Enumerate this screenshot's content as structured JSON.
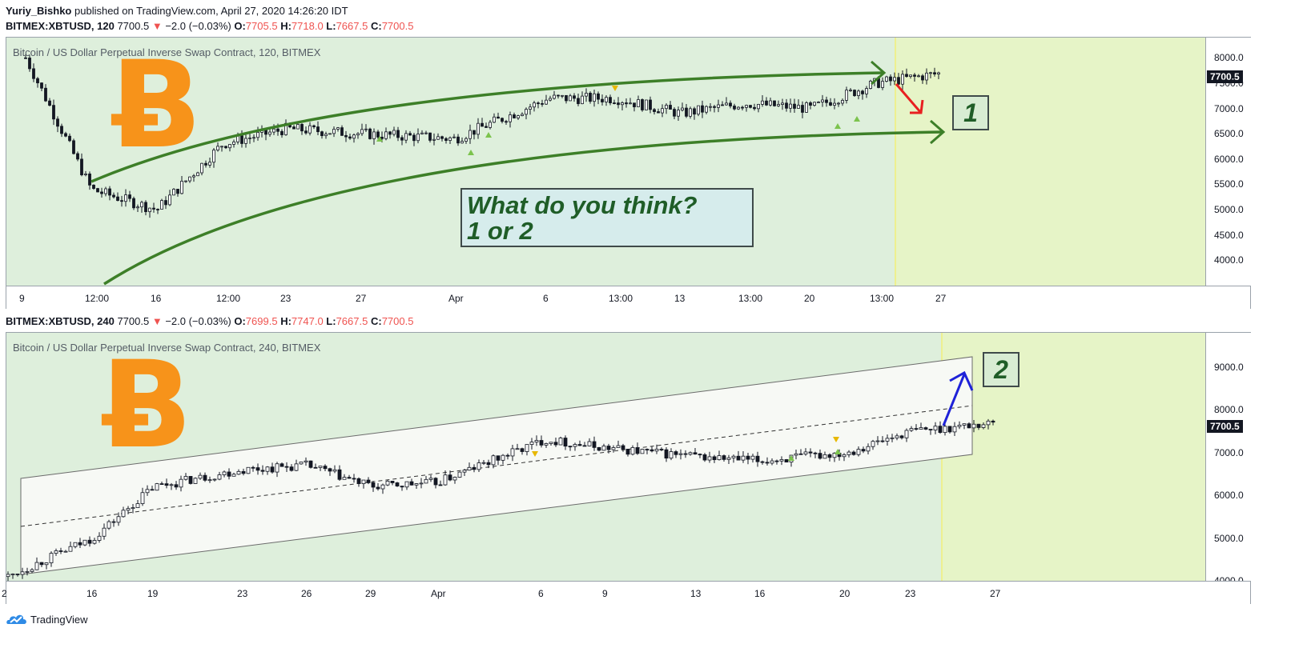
{
  "header": {
    "author": "Yuriy_Bishko",
    "published_text": "published on TradingView.com, April 27, 2020 14:26:20 IDT"
  },
  "chart1": {
    "symbol_line": "BITMEX:XBTUSD, 120",
    "price": "7700.5",
    "change": "−2.0 (−0.03%)",
    "O": "7705.5",
    "H": "7718.0",
    "L": "7667.5",
    "C": "7700.5",
    "description": "Bitcoin / US Dollar Perpetual Inverse Swap Contract, 120, BITMEX",
    "btc_symbol": "Ƀ",
    "price_tag": "7700.5",
    "label": "1",
    "question_line1": "What do you think?",
    "question_line2": "1 or 2"
  },
  "chart2": {
    "symbol_line": "BITMEX:XBTUSD, 240",
    "price": "7700.5",
    "change": "−2.0 (−0.03%)",
    "O": "7699.5",
    "H": "7747.0",
    "L": "7667.5",
    "C": "7700.5",
    "description": "Bitcoin / US Dollar Perpetual Inverse Swap Contract, 240, BITMEX",
    "btc_symbol": "Ƀ",
    "price_tag": "7700.5",
    "label": "2"
  },
  "colors": {
    "background": "#deefdc",
    "future_zone": "#e6f4c7",
    "bitcoin": "#f7931a",
    "arc_green": "#3d7f28",
    "red_arrow": "#e82020",
    "blue_arrow": "#1e22d8",
    "change_down": "#ef5350"
  },
  "footer": {
    "brand": "TradingView"
  },
  "chart_data": [
    {
      "type": "candlestick",
      "title": "Bitcoin / US Dollar Perpetual Inverse Swap Contract, 120, BITMEX",
      "ylim": [
        3500,
        8400
      ],
      "y_ticks": [
        "8000.0",
        "7500.0",
        "7000.0",
        "6500.0",
        "6000.0",
        "5500.0",
        "5000.0",
        "4500.0",
        "4000.0"
      ],
      "x_ticks": [
        "9",
        "12:00",
        "16",
        "12:00",
        "23",
        "27",
        "Apr",
        "6",
        "13:00",
        "13",
        "13:00",
        "20",
        "13:00",
        "27"
      ],
      "approx_close_path": [
        {
          "x": "9",
          "y": 8000
        },
        {
          "x": "12:00",
          "y": 5400
        },
        {
          "x": "16",
          "y": 5000
        },
        {
          "x": "12:00",
          "y": 6300
        },
        {
          "x": "23",
          "y": 6600
        },
        {
          "x": "27",
          "y": 6500
        },
        {
          "x": "Apr",
          "y": 6400
        },
        {
          "x": "6",
          "y": 7200
        },
        {
          "x": "13:00",
          "y": 7200
        },
        {
          "x": "13",
          "y": 6900
        },
        {
          "x": "13:00",
          "y": 7100
        },
        {
          "x": "20",
          "y": 7000
        },
        {
          "x": "13:00",
          "y": 7500
        },
        {
          "x": "27",
          "y": 7700
        }
      ],
      "last_price": 7700.5,
      "annotations": [
        "What do you think? 1 or 2",
        "1"
      ]
    },
    {
      "type": "candlestick",
      "title": "Bitcoin / US Dollar Perpetual Inverse Swap Contract, 240, BITMEX",
      "ylim": [
        4000,
        9800
      ],
      "y_ticks": [
        "9000.0",
        "8000.0",
        "7000.0",
        "6000.0",
        "5000.0",
        "4000.0"
      ],
      "x_ticks": [
        "2",
        "16",
        "19",
        "23",
        "26",
        "29",
        "Apr",
        "6",
        "9",
        "13",
        "16",
        "20",
        "23",
        "27"
      ],
      "approx_close_path": [
        {
          "x": "2",
          "y": 4100
        },
        {
          "x": "16",
          "y": 5000
        },
        {
          "x": "19",
          "y": 6200
        },
        {
          "x": "23",
          "y": 6600
        },
        {
          "x": "26",
          "y": 6700
        },
        {
          "x": "29",
          "y": 6200
        },
        {
          "x": "Apr",
          "y": 6300
        },
        {
          "x": "6",
          "y": 7300
        },
        {
          "x": "9",
          "y": 7100
        },
        {
          "x": "13",
          "y": 6900
        },
        {
          "x": "16",
          "y": 6800
        },
        {
          "x": "20",
          "y": 7000
        },
        {
          "x": "23",
          "y": 7500
        },
        {
          "x": "27",
          "y": 7700
        }
      ],
      "last_price": 7700.5,
      "annotations": [
        "2"
      ]
    }
  ]
}
